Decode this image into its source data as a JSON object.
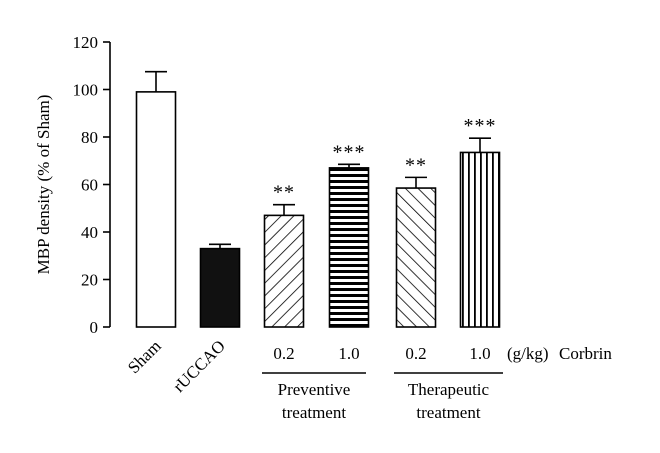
{
  "chart_data": {
    "type": "bar",
    "ylabel": "MBP density (% of Sham)",
    "ylim": [
      0,
      120
    ],
    "yticks": [
      0,
      20,
      40,
      60,
      80,
      100,
      120
    ],
    "grid": false,
    "bars": [
      {
        "label": "Sham",
        "value": 99,
        "error": 8.5,
        "pattern": "empty",
        "significance": ""
      },
      {
        "label": "rUCCAO",
        "value": 33,
        "error": 1.8,
        "pattern": "solid-black",
        "significance": ""
      },
      {
        "label": "0.2",
        "value": 47,
        "error": 4.5,
        "pattern": "diagonal-up",
        "significance": "**"
      },
      {
        "label": "1.0",
        "value": 67,
        "error": 1.5,
        "pattern": "horizontal",
        "significance": "***"
      },
      {
        "label": "0.2",
        "value": 58.5,
        "error": 4.5,
        "pattern": "diagonal-down",
        "significance": "**"
      },
      {
        "label": "1.0",
        "value": 73.5,
        "error": 6,
        "pattern": "vertical",
        "significance": "***"
      }
    ],
    "dose_unit": "(g/kg)",
    "drug": "Corbrin",
    "groups": [
      {
        "label_line1": "Preventive",
        "label_line2": "treatment",
        "bars": [
          2,
          3
        ]
      },
      {
        "label_line1": "Therapeutic",
        "label_line2": "treatment",
        "bars": [
          4,
          5
        ]
      }
    ]
  }
}
